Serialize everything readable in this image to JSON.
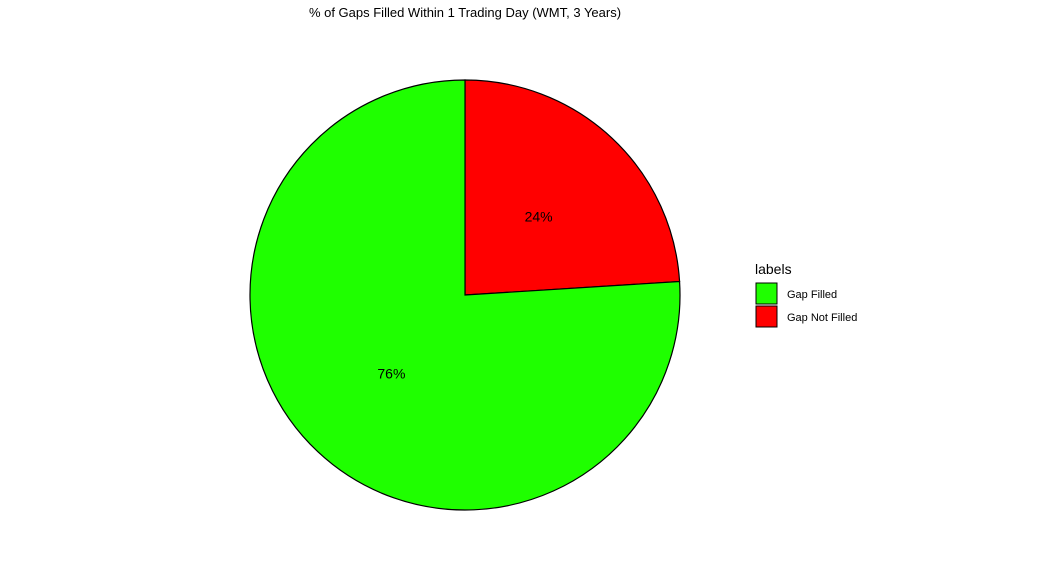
{
  "chart_data": {
    "type": "pie",
    "title": "% of Gaps Filled Within 1 Trading Day (WMT, 3 Years)",
    "slices": [
      {
        "label": "Gap Not Filled",
        "value": 24,
        "display": "24%",
        "color": "#ff0000"
      },
      {
        "label": "Gap Filled",
        "value": 76,
        "display": "76%",
        "color": "#1fff00"
      }
    ],
    "legend": {
      "title": "labels",
      "placement": "right",
      "entries": [
        {
          "label": "Gap Filled",
          "color": "#1fff00"
        },
        {
          "label": "Gap Not Filled",
          "color": "#ff0000"
        }
      ]
    },
    "start": "12 o'clock",
    "direction": "clockwise",
    "outline_color": "#000000"
  }
}
